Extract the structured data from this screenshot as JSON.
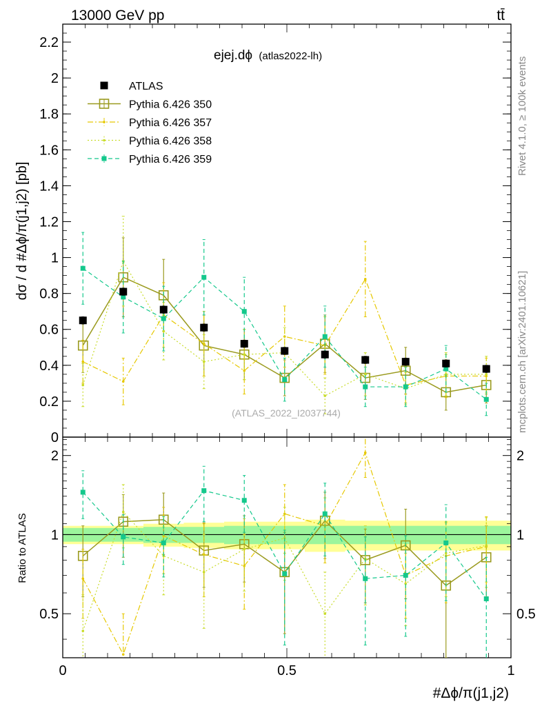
{
  "header": {
    "left": "13000 GeV pp",
    "right": "tt̄"
  },
  "side_text": {
    "rivet": "Rivet 4.1.0, ≥ 100k events",
    "mcplots": "mcplots.cern.ch [arXiv:2401.10621]"
  },
  "colors": {
    "ATLAS": "#000000",
    "Pythia 6.426 350": "#9a9a1e",
    "Pythia 6.426 357": "#e6c800",
    "Pythia 6.426 358": "#c8dc28",
    "Pythia 6.426 359": "#14c88c",
    "band_inner": "#9cf59c",
    "band_outer": "#ffff96"
  },
  "chart_data": [
    {
      "type": "line",
      "panel": "main",
      "title": "ejej.dϕ",
      "subtitle": "(atlas2022-lh)",
      "watermark": "(ATLAS_2022_I2037744)",
      "ylabel": "dσ / d #Δϕ/π(j1,j2) [pb]",
      "ylim": [
        0,
        2.3
      ],
      "yticks": [
        0,
        0.2,
        0.4,
        0.6,
        0.8,
        1,
        1.2,
        1.4,
        1.6,
        1.8,
        2,
        2.2
      ],
      "ytick_labels": [
        "0",
        "0.2",
        "0.4",
        "0.6",
        "0.8",
        "1",
        "1.2",
        "1.4",
        "1.6",
        "1.8",
        "2",
        "2.2"
      ],
      "xlim": [
        0,
        1
      ],
      "x": [
        0.045,
        0.135,
        0.225,
        0.315,
        0.405,
        0.495,
        0.585,
        0.675,
        0.765,
        0.855,
        0.945
      ],
      "series": [
        {
          "name": "ATLAS",
          "values": [
            0.65,
            0.81,
            0.71,
            0.61,
            0.52,
            0.48,
            0.46,
            0.43,
            0.42,
            0.41,
            0.38
          ],
          "errors": [
            0.02,
            0.02,
            0.02,
            0.02,
            0.02,
            0.02,
            0.02,
            0.02,
            0.02,
            0.02,
            0.02
          ]
        },
        {
          "name": "Pythia 6.426 350",
          "values": [
            0.51,
            0.89,
            0.79,
            0.51,
            0.46,
            0.33,
            0.52,
            0.33,
            0.37,
            0.25,
            0.29
          ],
          "errors": [
            0.15,
            0.22,
            0.2,
            0.17,
            0.14,
            0.1,
            0.16,
            0.12,
            0.13,
            0.1,
            0.1
          ]
        },
        {
          "name": "Pythia 6.426 357",
          "values": [
            0.42,
            0.31,
            0.68,
            0.52,
            0.37,
            0.56,
            0.51,
            0.88,
            0.29,
            0.34,
            0.34
          ],
          "errors": [
            0.12,
            0.13,
            0.18,
            0.18,
            0.13,
            0.17,
            0.16,
            0.21,
            0.1,
            0.12,
            0.1
          ]
        },
        {
          "name": "Pythia 6.426 358",
          "values": [
            0.29,
            0.98,
            0.59,
            0.42,
            0.46,
            0.47,
            0.23,
            0.35,
            0.27,
            0.35,
            0.35
          ],
          "errors": [
            0.12,
            0.25,
            0.16,
            0.15,
            0.14,
            0.14,
            0.1,
            0.12,
            0.09,
            0.12,
            0.1
          ]
        },
        {
          "name": "Pythia 6.426 359",
          "values": [
            0.94,
            0.78,
            0.66,
            0.89,
            0.7,
            0.32,
            0.56,
            0.28,
            0.28,
            0.38,
            0.21
          ],
          "errors": [
            0.2,
            0.2,
            0.18,
            0.21,
            0.19,
            0.12,
            0.17,
            0.11,
            0.11,
            0.13,
            0.09
          ]
        }
      ]
    },
    {
      "type": "line",
      "panel": "ratio",
      "ylabel": "Ratio to ATLAS",
      "xlabel": "#Δϕ/π(j1,j2)",
      "ylim": [
        0.34,
        2.35
      ],
      "yscale": "log",
      "yticks": [
        0.5,
        1,
        2
      ],
      "ytick_labels": [
        "0.5",
        "1",
        "2"
      ],
      "xlim": [
        0,
        1
      ],
      "xticks": [
        0,
        0.5,
        1
      ],
      "xtick_labels": [
        "0",
        "0.5",
        "1"
      ],
      "x": [
        0.045,
        0.135,
        0.225,
        0.315,
        0.405,
        0.495,
        0.585,
        0.675,
        0.765,
        0.855,
        0.945
      ],
      "band_edges": [
        0,
        0.09,
        0.18,
        0.27,
        0.36,
        0.45,
        0.54,
        0.63,
        0.72,
        0.81,
        0.9,
        1.0
      ],
      "band_inner": [
        0.06,
        0.06,
        0.07,
        0.07,
        0.08,
        0.08,
        0.08,
        0.08,
        0.08,
        0.08,
        0.08
      ],
      "band_outer": [
        0.08,
        0.08,
        0.1,
        0.11,
        0.12,
        0.12,
        0.14,
        0.13,
        0.13,
        0.13,
        0.13
      ],
      "series": [
        {
          "name": "Pythia 6.426 350",
          "values": [
            0.83,
            1.12,
            1.14,
            0.87,
            0.92,
            0.72,
            1.13,
            0.8,
            0.91,
            0.64,
            0.82
          ],
          "errors": [
            0.25,
            0.3,
            0.3,
            0.24,
            0.26,
            0.3,
            0.32,
            0.25,
            0.34,
            0.3,
            0.26
          ]
        },
        {
          "name": "Pythia 6.426 357",
          "values": [
            0.68,
            0.35,
            0.99,
            0.84,
            0.76,
            1.2,
            1.08,
            2.05,
            0.7,
            0.83,
            0.9
          ],
          "errors": [
            0.2,
            0.15,
            0.28,
            0.26,
            0.24,
            0.35,
            0.3,
            0.4,
            0.22,
            0.28,
            0.27
          ]
        },
        {
          "name": "Pythia 6.426 358",
          "values": [
            0.43,
            1.22,
            0.83,
            0.72,
            0.88,
            0.97,
            0.5,
            0.81,
            0.65,
            0.85,
            0.91
          ],
          "errors": [
            0.16,
            0.33,
            0.24,
            0.28,
            0.27,
            0.3,
            0.22,
            0.27,
            0.2,
            0.27,
            0.25
          ]
        },
        {
          "name": "Pythia 6.426 359",
          "values": [
            1.45,
            0.98,
            0.93,
            1.47,
            1.35,
            0.71,
            1.2,
            0.68,
            0.7,
            0.93,
            0.57
          ],
          "errors": [
            0.3,
            0.21,
            0.24,
            0.35,
            0.33,
            0.33,
            0.37,
            0.3,
            0.29,
            0.37,
            0.25
          ]
        }
      ]
    }
  ]
}
